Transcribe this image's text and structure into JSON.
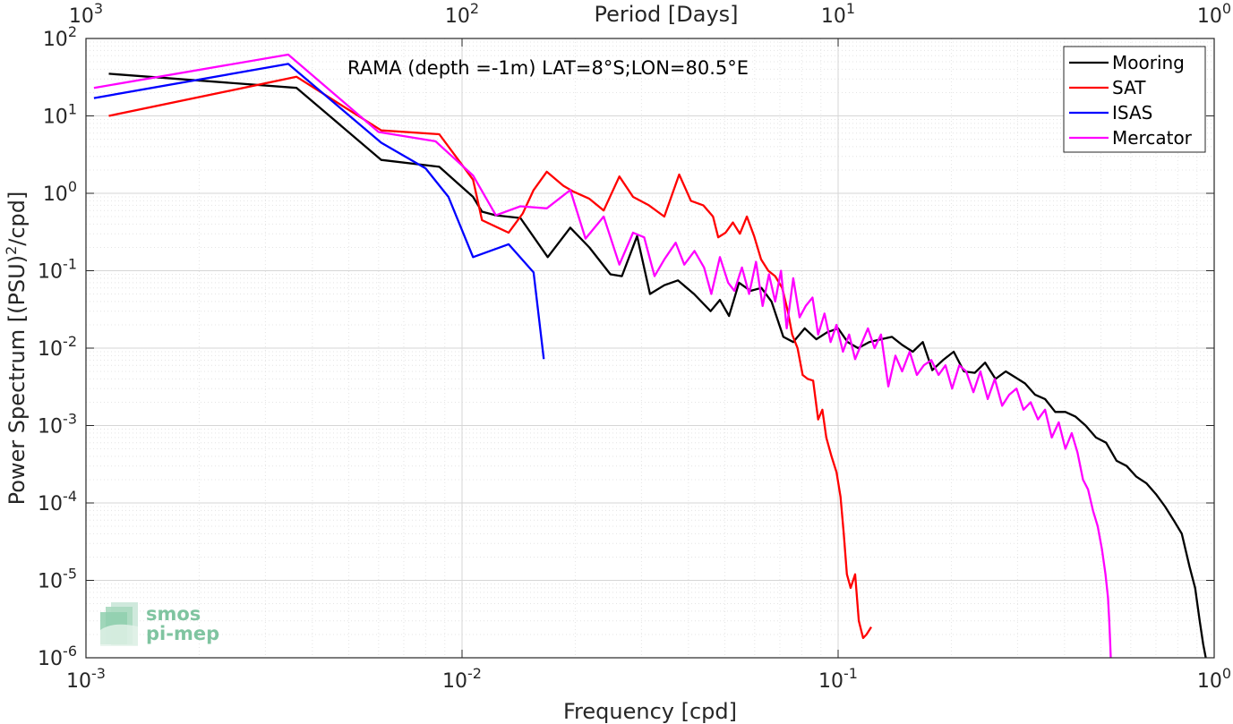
{
  "chart_data": {
    "type": "line",
    "title": "RAMA (depth =-1m) LAT=8°S;LON=80.5°E",
    "xlabel": "Frequency [cpd]",
    "ylabel": "Power Spectrum [(PSU)²/cpd]",
    "ylabel_base": "Power Spectrum [(PSU)",
    "ylabel_sup": "2",
    "ylabel_tail": "/cpd]",
    "x2label": "Period [Days]",
    "xscale": "log",
    "yscale": "log",
    "xlim": [
      0.001,
      1
    ],
    "ylim": [
      1e-06,
      100
    ],
    "grid": true,
    "legend_position": "top-right",
    "x_ticks": [
      {
        "value": 0.001,
        "base": "10",
        "exp": "-3"
      },
      {
        "value": 0.01,
        "base": "10",
        "exp": "-2"
      },
      {
        "value": 0.1,
        "base": "10",
        "exp": "-1"
      },
      {
        "value": 1,
        "base": "10",
        "exp": "0"
      }
    ],
    "x2_ticks": [
      {
        "value": 1000,
        "base": "10",
        "exp": "3"
      },
      {
        "value": 100,
        "base": "10",
        "exp": "2"
      },
      {
        "value": 10,
        "base": "10",
        "exp": "1"
      },
      {
        "value": 1,
        "base": "10",
        "exp": "0"
      }
    ],
    "y_ticks": [
      {
        "value": 1e-06,
        "base": "10",
        "exp": "-6"
      },
      {
        "value": 1e-05,
        "base": "10",
        "exp": "-5"
      },
      {
        "value": 0.0001,
        "base": "10",
        "exp": "-4"
      },
      {
        "value": 0.001,
        "base": "10",
        "exp": "-3"
      },
      {
        "value": 0.01,
        "base": "10",
        "exp": "-2"
      },
      {
        "value": 0.1,
        "base": "10",
        "exp": "-1"
      },
      {
        "value": 1,
        "base": "10",
        "exp": "0"
      },
      {
        "value": 10,
        "base": "10",
        "exp": "1"
      },
      {
        "value": 100,
        "base": "10",
        "exp": "2"
      }
    ],
    "series": [
      {
        "name": "Mooring",
        "color": "#000000",
        "points": [
          [
            0.00115,
            35
          ],
          [
            0.00363,
            23
          ],
          [
            0.0061,
            2.7
          ],
          [
            0.0087,
            2.2
          ],
          [
            0.0107,
            0.9
          ],
          [
            0.0113,
            0.58
          ],
          [
            0.0123,
            0.52
          ],
          [
            0.0143,
            0.48
          ],
          [
            0.0169,
            0.15
          ],
          [
            0.0194,
            0.36
          ],
          [
            0.0218,
            0.2
          ],
          [
            0.0248,
            0.09
          ],
          [
            0.0266,
            0.085
          ],
          [
            0.0292,
            0.28
          ],
          [
            0.0316,
            0.05
          ],
          [
            0.0345,
            0.065
          ],
          [
            0.0375,
            0.075
          ],
          [
            0.0414,
            0.05
          ],
          [
            0.0458,
            0.03
          ],
          [
            0.0485,
            0.042
          ],
          [
            0.0513,
            0.026
          ],
          [
            0.0545,
            0.07
          ],
          [
            0.0585,
            0.055
          ],
          [
            0.0625,
            0.06
          ],
          [
            0.0665,
            0.04
          ],
          [
            0.0715,
            0.014
          ],
          [
            0.076,
            0.012
          ],
          [
            0.0815,
            0.018
          ],
          [
            0.0875,
            0.013
          ],
          [
            0.0935,
            0.016
          ],
          [
            0.1,
            0.018
          ],
          [
            0.106,
            0.012
          ],
          [
            0.113,
            0.01
          ],
          [
            0.121,
            0.012
          ],
          [
            0.13,
            0.013
          ],
          [
            0.139,
            0.014
          ],
          [
            0.148,
            0.011
          ],
          [
            0.158,
            0.009
          ],
          [
            0.168,
            0.012
          ],
          [
            0.178,
            0.0052
          ],
          [
            0.19,
            0.007
          ],
          [
            0.203,
            0.009
          ],
          [
            0.216,
            0.005
          ],
          [
            0.231,
            0.0048
          ],
          [
            0.246,
            0.0065
          ],
          [
            0.262,
            0.004
          ],
          [
            0.279,
            0.005
          ],
          [
            0.296,
            0.0042
          ],
          [
            0.314,
            0.0035
          ],
          [
            0.334,
            0.0025
          ],
          [
            0.355,
            0.0022
          ],
          [
            0.378,
            0.0015
          ],
          [
            0.402,
            0.0015
          ],
          [
            0.428,
            0.0013
          ],
          [
            0.455,
            0.001
          ],
          [
            0.485,
            0.0007
          ],
          [
            0.516,
            0.0006
          ],
          [
            0.55,
            0.00035
          ],
          [
            0.585,
            0.0003
          ],
          [
            0.62,
            0.00022
          ],
          [
            0.66,
            0.00018
          ],
          [
            0.7,
            0.00013
          ],
          [
            0.74,
            9e-05
          ],
          [
            0.78,
            6e-05
          ],
          [
            0.82,
            4e-05
          ],
          [
            0.86,
            1.5e-05
          ],
          [
            0.89,
            8e-06
          ],
          [
            0.915,
            3e-06
          ],
          [
            0.935,
            1.5e-06
          ],
          [
            0.95,
            1e-06
          ]
        ]
      },
      {
        "name": "SAT",
        "color": "#ff0000",
        "points": [
          [
            0.00115,
            10
          ],
          [
            0.00363,
            32
          ],
          [
            0.0061,
            6.5
          ],
          [
            0.0087,
            5.8
          ],
          [
            0.0107,
            1.5
          ],
          [
            0.0113,
            0.45
          ],
          [
            0.0133,
            0.31
          ],
          [
            0.0145,
            0.55
          ],
          [
            0.0155,
            1.1
          ],
          [
            0.0168,
            1.9
          ],
          [
            0.0186,
            1.25
          ],
          [
            0.0198,
            1.05
          ],
          [
            0.0218,
            0.85
          ],
          [
            0.0238,
            0.6
          ],
          [
            0.0262,
            1.65
          ],
          [
            0.0285,
            0.9
          ],
          [
            0.0314,
            0.7
          ],
          [
            0.0345,
            0.5
          ],
          [
            0.0378,
            1.75
          ],
          [
            0.0406,
            0.8
          ],
          [
            0.0438,
            0.7
          ],
          [
            0.0465,
            0.5
          ],
          [
            0.048,
            0.27
          ],
          [
            0.0502,
            0.31
          ],
          [
            0.0525,
            0.42
          ],
          [
            0.0548,
            0.3
          ],
          [
            0.0572,
            0.5
          ],
          [
            0.0598,
            0.28
          ],
          [
            0.0624,
            0.14
          ],
          [
            0.0652,
            0.1
          ],
          [
            0.068,
            0.085
          ],
          [
            0.071,
            0.06
          ],
          [
            0.0735,
            0.03
          ],
          [
            0.0755,
            0.015
          ],
          [
            0.078,
            0.01
          ],
          [
            0.0805,
            0.0045
          ],
          [
            0.083,
            0.004
          ],
          [
            0.0858,
            0.0038
          ],
          [
            0.0885,
            0.0012
          ],
          [
            0.0908,
            0.0016
          ],
          [
            0.093,
            0.0007
          ],
          [
            0.096,
            0.0004
          ],
          [
            0.099,
            0.00025
          ],
          [
            0.1015,
            0.00012
          ],
          [
            0.1035,
            4e-05
          ],
          [
            0.1055,
            1.2e-05
          ],
          [
            0.108,
            8e-06
          ],
          [
            0.111,
            1.2e-05
          ],
          [
            0.1135,
            3e-06
          ],
          [
            0.1165,
            1.8e-06
          ],
          [
            0.119,
            2e-06
          ],
          [
            0.1225,
            2.5e-06
          ]
        ]
      },
      {
        "name": "ISAS",
        "color": "#0000ff",
        "points": [
          [
            0.00105,
            17
          ],
          [
            0.00345,
            47
          ],
          [
            0.0061,
            4.5
          ],
          [
            0.008,
            2.1
          ],
          [
            0.0092,
            0.9
          ],
          [
            0.0107,
            0.15
          ],
          [
            0.0133,
            0.22
          ],
          [
            0.0155,
            0.095
          ],
          [
            0.0165,
            0.0072
          ]
        ]
      },
      {
        "name": "Mercator",
        "color": "#ff00ff",
        "points": [
          [
            0.00105,
            23
          ],
          [
            0.00345,
            62
          ],
          [
            0.006,
            6.2
          ],
          [
            0.0085,
            4.7
          ],
          [
            0.0107,
            1.7
          ],
          [
            0.0123,
            0.52
          ],
          [
            0.0143,
            0.68
          ],
          [
            0.0168,
            0.64
          ],
          [
            0.0194,
            1.1
          ],
          [
            0.0213,
            0.26
          ],
          [
            0.0238,
            0.5
          ],
          [
            0.0262,
            0.12
          ],
          [
            0.0285,
            0.31
          ],
          [
            0.0305,
            0.27
          ],
          [
            0.0325,
            0.085
          ],
          [
            0.0345,
            0.14
          ],
          [
            0.037,
            0.23
          ],
          [
            0.039,
            0.12
          ],
          [
            0.0415,
            0.18
          ],
          [
            0.044,
            0.11
          ],
          [
            0.046,
            0.05
          ],
          [
            0.0485,
            0.15
          ],
          [
            0.051,
            0.07
          ],
          [
            0.053,
            0.055
          ],
          [
            0.0555,
            0.11
          ],
          [
            0.058,
            0.05
          ],
          [
            0.0605,
            0.13
          ],
          [
            0.063,
            0.035
          ],
          [
            0.0655,
            0.09
          ],
          [
            0.068,
            0.04
          ],
          [
            0.0705,
            0.1
          ],
          [
            0.073,
            0.018
          ],
          [
            0.076,
            0.08
          ],
          [
            0.079,
            0.025
          ],
          [
            0.082,
            0.035
          ],
          [
            0.0855,
            0.045
          ],
          [
            0.0885,
            0.015
          ],
          [
            0.092,
            0.028
          ],
          [
            0.0955,
            0.012
          ],
          [
            0.099,
            0.02
          ],
          [
            0.103,
            0.009
          ],
          [
            0.107,
            0.015
          ],
          [
            0.111,
            0.0072
          ],
          [
            0.115,
            0.011
          ],
          [
            0.12,
            0.018
          ],
          [
            0.125,
            0.01
          ],
          [
            0.13,
            0.015
          ],
          [
            0.136,
            0.0032
          ],
          [
            0.142,
            0.008
          ],
          [
            0.148,
            0.005
          ],
          [
            0.155,
            0.009
          ],
          [
            0.162,
            0.0045
          ],
          [
            0.169,
            0.006
          ],
          [
            0.177,
            0.007
          ],
          [
            0.185,
            0.0045
          ],
          [
            0.193,
            0.006
          ],
          [
            0.201,
            0.003
          ],
          [
            0.21,
            0.006
          ],
          [
            0.219,
            0.005
          ],
          [
            0.229,
            0.0027
          ],
          [
            0.239,
            0.005
          ],
          [
            0.25,
            0.0022
          ],
          [
            0.261,
            0.004
          ],
          [
            0.273,
            0.0018
          ],
          [
            0.285,
            0.0025
          ],
          [
            0.298,
            0.003
          ],
          [
            0.311,
            0.0016
          ],
          [
            0.325,
            0.002
          ],
          [
            0.34,
            0.0012
          ],
          [
            0.355,
            0.0016
          ],
          [
            0.37,
            0.0007
          ],
          [
            0.386,
            0.0011
          ],
          [
            0.402,
            0.0005
          ],
          [
            0.418,
            0.0008
          ],
          [
            0.433,
            0.00045
          ],
          [
            0.448,
            0.0002
          ],
          [
            0.462,
            0.00015
          ],
          [
            0.476,
            8e-05
          ],
          [
            0.49,
            5e-05
          ],
          [
            0.503,
            2.5e-05
          ],
          [
            0.514,
            1.2e-05
          ],
          [
            0.522,
            6e-06
          ],
          [
            0.526,
            3e-06
          ],
          [
            0.529,
            1.5e-06
          ],
          [
            0.531,
            1e-06
          ]
        ]
      }
    ]
  },
  "logo": {
    "line1": "smos",
    "line2": "pi-mep",
    "color": "#7fc4a0"
  }
}
